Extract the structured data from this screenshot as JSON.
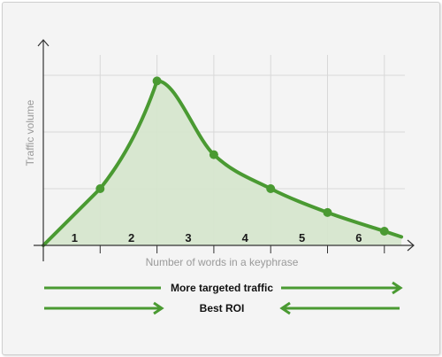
{
  "chart_data": {
    "type": "line",
    "title": "",
    "xlabel": "Number of words in a keyphrase",
    "ylabel": "Traffic volume",
    "categories": [
      "1",
      "2",
      "3",
      "4",
      "5",
      "6"
    ],
    "x": [
      0,
      1,
      2,
      3,
      4,
      5,
      6,
      6.3
    ],
    "series": [
      {
        "values": [
          0,
          1.0,
          2.9,
          1.6,
          1.0,
          0.58,
          0.25,
          0.15
        ]
      }
    ],
    "xlim": [
      0,
      6.5
    ],
    "ylim": [
      0,
      3.0
    ],
    "area_fill": true,
    "grid": true,
    "colors": {
      "line": "#4a9a32",
      "fill": "#d6e6cd",
      "grid": "#d8d8d8",
      "axis": "#333333",
      "arrow": "#4a9a32"
    }
  },
  "annotations": {
    "arrow1_label": "More targeted traffic",
    "arrow2_label": "Best ROI"
  }
}
